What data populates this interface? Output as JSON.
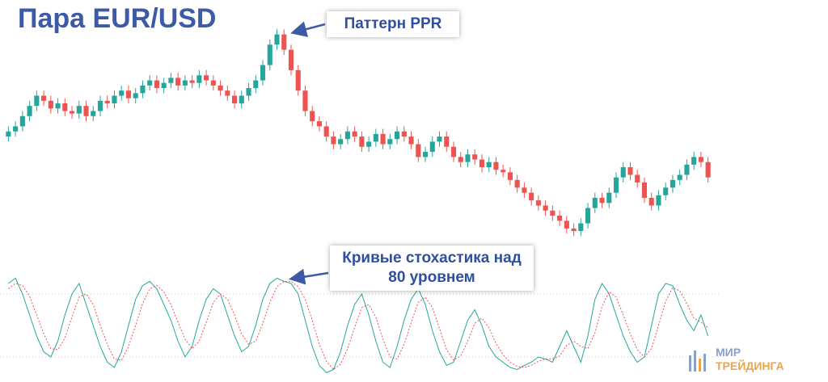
{
  "chart_data": [
    {
      "type": "candlestick",
      "title": "Пара EUR/USD",
      "annotations": [
        "Паттерн PPR",
        "Кривые стохастика над 80 уровнем"
      ],
      "up_color": "#26a69a",
      "down_color": "#ef5350",
      "ylim": [
        15,
        102
      ],
      "open": [
        58,
        60,
        62,
        66,
        70,
        74,
        72,
        69,
        71,
        68,
        67,
        70,
        66,
        68,
        72,
        71,
        74,
        76,
        73,
        75,
        78,
        80,
        77,
        79,
        81,
        78,
        80,
        79,
        82,
        80,
        78,
        76,
        74,
        71,
        74,
        77,
        80,
        86,
        94,
        98,
        92,
        84,
        76,
        68,
        64,
        62,
        58,
        55,
        57,
        60,
        58,
        54,
        56,
        59,
        55,
        57,
        60,
        58,
        55,
        50,
        52,
        56,
        58,
        54,
        50,
        48,
        51,
        49,
        46,
        48,
        45,
        44,
        41,
        38,
        36,
        33,
        31,
        29,
        27,
        25,
        22,
        21,
        24,
        30,
        34,
        32,
        36,
        42,
        46,
        43,
        40,
        34,
        31,
        35,
        38,
        41,
        43,
        47,
        50,
        48
      ],
      "high": [
        62,
        64,
        68,
        72,
        76,
        76,
        74,
        73,
        73,
        70,
        72,
        72,
        70,
        74,
        74,
        76,
        78,
        78,
        77,
        80,
        82,
        82,
        81,
        83,
        83,
        82,
        82,
        84,
        84,
        82,
        80,
        78,
        76,
        76,
        79,
        82,
        88,
        96,
        100,
        100,
        94,
        86,
        78,
        70,
        66,
        64,
        60,
        59,
        62,
        62,
        60,
        58,
        61,
        61,
        59,
        62,
        62,
        60,
        57,
        54,
        58,
        60,
        60,
        56,
        52,
        53,
        53,
        51,
        50,
        50,
        47,
        46,
        43,
        40,
        38,
        35,
        33,
        31,
        29,
        27,
        24,
        26,
        32,
        36,
        36,
        38,
        44,
        48,
        48,
        45,
        42,
        36,
        37,
        40,
        43,
        45,
        49,
        52,
        52,
        50
      ],
      "low": [
        56,
        58,
        60,
        64,
        68,
        70,
        67,
        67,
        66,
        65,
        65,
        64,
        64,
        66,
        69,
        69,
        72,
        71,
        71,
        73,
        76,
        75,
        75,
        77,
        76,
        76,
        77,
        77,
        78,
        76,
        74,
        72,
        69,
        69,
        72,
        75,
        78,
        84,
        92,
        90,
        82,
        74,
        66,
        62,
        60,
        56,
        53,
        53,
        55,
        56,
        52,
        52,
        54,
        53,
        53,
        55,
        56,
        53,
        48,
        48,
        50,
        54,
        52,
        48,
        46,
        46,
        47,
        44,
        44,
        43,
        42,
        39,
        36,
        34,
        31,
        29,
        27,
        25,
        23,
        20,
        19,
        19,
        22,
        28,
        30,
        30,
        34,
        40,
        41,
        38,
        32,
        29,
        29,
        33,
        36,
        39,
        41,
        45,
        46,
        40
      ],
      "close": [
        60,
        62,
        66,
        70,
        74,
        72,
        69,
        71,
        68,
        67,
        70,
        66,
        68,
        72,
        71,
        74,
        76,
        73,
        75,
        78,
        80,
        77,
        79,
        81,
        78,
        80,
        79,
        82,
        80,
        78,
        76,
        74,
        71,
        74,
        77,
        80,
        86,
        94,
        98,
        92,
        84,
        76,
        68,
        64,
        62,
        58,
        55,
        57,
        60,
        58,
        54,
        56,
        59,
        55,
        57,
        60,
        58,
        55,
        50,
        52,
        56,
        58,
        54,
        50,
        48,
        51,
        49,
        46,
        48,
        45,
        44,
        41,
        38,
        36,
        33,
        31,
        29,
        27,
        25,
        22,
        21,
        24,
        30,
        34,
        32,
        36,
        42,
        46,
        43,
        40,
        34,
        31,
        35,
        38,
        41,
        43,
        47,
        50,
        48,
        42
      ]
    },
    {
      "type": "line",
      "ylim": [
        0,
        100
      ],
      "levels": [
        80,
        20
      ],
      "series": [
        {
          "color": "#26a69a",
          "values": [
            90,
            95,
            80,
            60,
            40,
            25,
            20,
            35,
            60,
            80,
            90,
            70,
            50,
            30,
            15,
            10,
            25,
            50,
            75,
            88,
            92,
            85,
            70,
            55,
            35,
            20,
            30,
            55,
            75,
            85,
            80,
            60,
            40,
            25,
            30,
            50,
            75,
            90,
            95,
            92,
            90,
            80,
            55,
            30,
            12,
            5,
            8,
            25,
            50,
            70,
            80,
            60,
            35,
            15,
            10,
            30,
            55,
            75,
            85,
            70,
            45,
            25,
            12,
            15,
            35,
            55,
            65,
            50,
            30,
            20,
            15,
            10,
            8,
            12,
            15,
            20,
            18,
            15,
            30,
            45,
            30,
            15,
            40,
            75,
            90,
            80,
            60,
            40,
            25,
            15,
            20,
            50,
            80,
            90,
            88,
            70,
            55,
            45,
            60,
            40
          ]
        },
        {
          "color": "#ef5350",
          "dashed": true,
          "values": [
            85,
            90,
            88,
            78,
            60,
            42,
            28,
            27,
            38,
            58,
            77,
            80,
            70,
            50,
            32,
            18,
            17,
            30,
            50,
            71,
            85,
            88,
            82,
            70,
            53,
            37,
            28,
            35,
            53,
            72,
            80,
            75,
            60,
            42,
            32,
            35,
            52,
            72,
            87,
            92,
            92,
            87,
            75,
            55,
            32,
            16,
            8,
            13,
            28,
            48,
            67,
            70,
            58,
            37,
            20,
            18,
            32,
            53,
            72,
            77,
            67,
            47,
            27,
            17,
            21,
            35,
            52,
            57,
            48,
            33,
            22,
            15,
            11,
            10,
            12,
            16,
            18,
            18,
            21,
            31,
            35,
            30,
            28,
            43,
            68,
            82,
            77,
            60,
            42,
            27,
            20,
            28,
            50,
            73,
            86,
            83,
            71,
            57,
            53,
            48
          ]
        }
      ]
    }
  ],
  "logo": [
    "МИР",
    "ТРЕЙДИНГА"
  ]
}
